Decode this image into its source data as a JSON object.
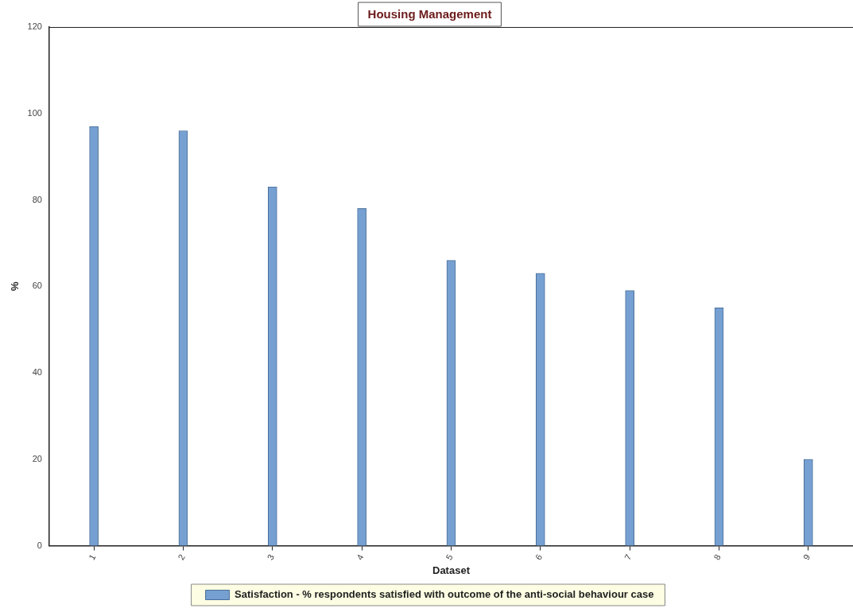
{
  "chart_data": {
    "type": "bar",
    "title": "Housing Management",
    "xlabel": "Dataset",
    "ylabel": "%",
    "categories": [
      "1",
      "2",
      "3",
      "4",
      "5",
      "6",
      "7",
      "8",
      "9"
    ],
    "series": [
      {
        "name": "Satisfaction - % respondents satisfied with outcome of the anti-social behaviour case",
        "color": "#76a0d2",
        "values": [
          97,
          96,
          83,
          78,
          66,
          63,
          59,
          55,
          20
        ]
      }
    ],
    "ylim": [
      0,
      120
    ],
    "yticks": [
      0,
      20,
      40,
      60,
      80,
      100,
      120
    ],
    "grid": false,
    "legend": "bottom"
  }
}
